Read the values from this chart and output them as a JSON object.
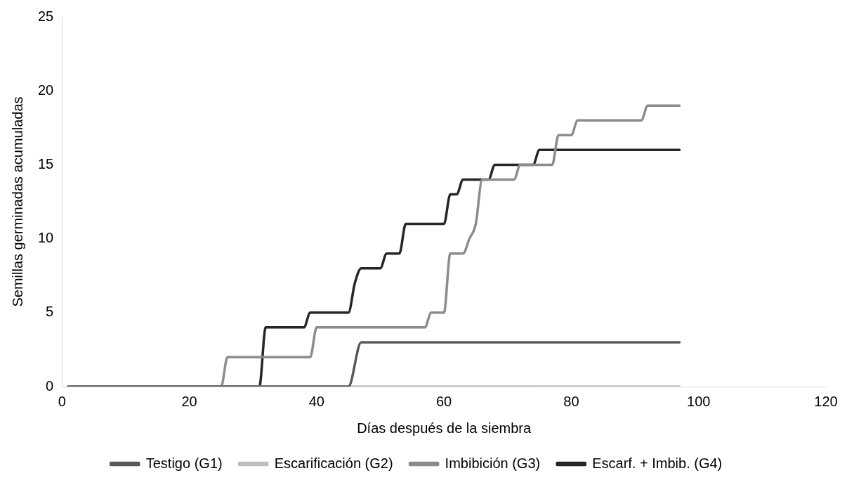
{
  "chart_data": {
    "type": "line",
    "xlabel": "Días después de la siembra",
    "ylabel": "Semillas germinadas acumuladas",
    "xlim": [
      0,
      120
    ],
    "xticks": [
      0,
      20,
      40,
      60,
      80,
      100,
      120
    ],
    "ylim": [
      0,
      25
    ],
    "yticks": [
      0,
      5,
      10,
      15,
      20,
      25
    ],
    "grid": false,
    "legend": "bottom",
    "marker": "none",
    "line_style": "solid",
    "series": [
      {
        "name": "Testigo (G1)",
        "color": "#595959",
        "x": [
          1,
          45,
          47,
          97
        ],
        "values": [
          0,
          0,
          3,
          3
        ]
      },
      {
        "name": "Escarificación (G2)",
        "color": "#bfbfbf",
        "x": [
          1,
          97
        ],
        "values": [
          0,
          0
        ]
      },
      {
        "name": "Imbibición (G3)",
        "color": "#8c8c8c",
        "x": [
          1,
          25,
          26,
          39,
          40,
          57,
          58,
          60,
          61,
          63,
          64,
          65,
          66,
          71,
          72,
          77,
          78,
          80,
          81,
          91,
          92,
          97
        ],
        "values": [
          0,
          0,
          2,
          2,
          4,
          4,
          5,
          5,
          9,
          9,
          10,
          11,
          14,
          14,
          15,
          15,
          17,
          17,
          18,
          18,
          19,
          19
        ]
      },
      {
        "name": "Escarf. + Imbib. (G4)",
        "color": "#262626",
        "x": [
          1,
          31,
          32,
          38,
          39,
          45,
          46,
          47,
          50,
          51,
          53,
          54,
          60,
          61,
          62,
          63,
          64,
          67,
          68,
          74,
          75,
          97
        ],
        "values": [
          0,
          0,
          4,
          4,
          5,
          5,
          7,
          8,
          8,
          9,
          9,
          11,
          11,
          13,
          13,
          14,
          14,
          14,
          15,
          15,
          16,
          16
        ]
      }
    ]
  }
}
